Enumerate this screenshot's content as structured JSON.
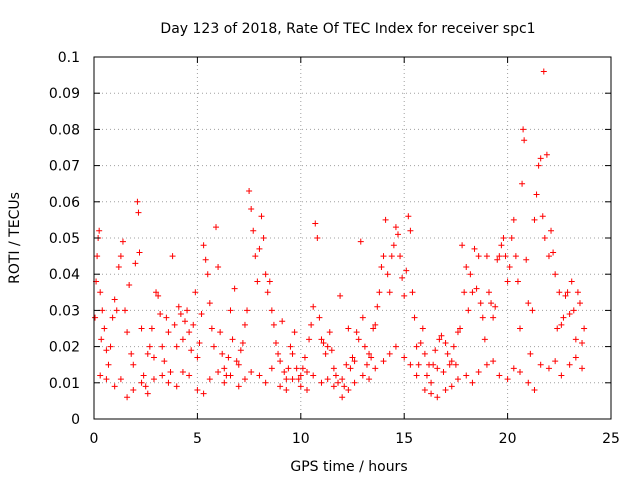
{
  "chart_data": {
    "type": "scatter",
    "title": "Day 123 of 2018, Rate Of TEC Index for receiver spc1",
    "xlabel": "GPS time / hours",
    "ylabel": "ROTI / TECUs",
    "xlim": [
      0,
      25
    ],
    "ylim": [
      0,
      0.1
    ],
    "x_ticks": [
      "0",
      "5",
      "10",
      "15",
      "20",
      "25"
    ],
    "y_ticks": [
      "0",
      "0.01",
      "0.02",
      "0.03",
      "0.04",
      "0.05",
      "0.06",
      "0.07",
      "0.08",
      "0.09",
      "0.1"
    ],
    "grid": true,
    "marker": "+",
    "color": "#ff0000",
    "series": [
      {
        "points": [
          [
            0.05,
            0.028
          ],
          [
            0.1,
            0.038
          ],
          [
            0.15,
            0.045
          ],
          [
            0.2,
            0.05
          ],
          [
            0.25,
            0.052
          ],
          [
            0.3,
            0.035
          ],
          [
            0.35,
            0.022
          ],
          [
            0.4,
            0.03
          ],
          [
            0.5,
            0.025
          ],
          [
            0.6,
            0.019
          ],
          [
            0.7,
            0.015
          ],
          [
            0.8,
            0.02
          ],
          [
            0.9,
            0.028
          ],
          [
            1.0,
            0.033
          ],
          [
            1.1,
            0.03
          ],
          [
            1.2,
            0.042
          ],
          [
            1.3,
            0.045
          ],
          [
            1.4,
            0.049
          ],
          [
            1.5,
            0.03
          ],
          [
            1.6,
            0.024
          ],
          [
            1.7,
            0.037
          ],
          [
            1.8,
            0.018
          ],
          [
            1.9,
            0.015
          ],
          [
            2.0,
            0.043
          ],
          [
            2.1,
            0.06
          ],
          [
            2.15,
            0.057
          ],
          [
            2.2,
            0.046
          ],
          [
            2.3,
            0.025
          ],
          [
            2.4,
            0.012
          ],
          [
            2.5,
            0.009
          ],
          [
            2.6,
            0.018
          ],
          [
            2.7,
            0.02
          ],
          [
            2.8,
            0.025
          ],
          [
            2.9,
            0.017
          ],
          [
            3.0,
            0.035
          ],
          [
            3.1,
            0.034
          ],
          [
            3.2,
            0.029
          ],
          [
            3.3,
            0.02
          ],
          [
            3.4,
            0.016
          ],
          [
            3.5,
            0.028
          ],
          [
            3.6,
            0.024
          ],
          [
            3.7,
            0.013
          ],
          [
            3.8,
            0.045
          ],
          [
            3.9,
            0.026
          ],
          [
            4.0,
            0.02
          ],
          [
            4.1,
            0.031
          ],
          [
            4.2,
            0.029
          ],
          [
            4.3,
            0.022
          ],
          [
            4.4,
            0.027
          ],
          [
            4.5,
            0.03
          ],
          [
            4.6,
            0.024
          ],
          [
            4.7,
            0.019
          ],
          [
            4.8,
            0.026
          ],
          [
            4.9,
            0.035
          ],
          [
            5.0,
            0.017
          ],
          [
            5.1,
            0.021
          ],
          [
            5.2,
            0.029
          ],
          [
            5.3,
            0.048
          ],
          [
            5.4,
            0.044
          ],
          [
            5.5,
            0.04
          ],
          [
            5.6,
            0.032
          ],
          [
            5.7,
            0.025
          ],
          [
            5.8,
            0.02
          ],
          [
            5.9,
            0.053
          ],
          [
            6.0,
            0.042
          ],
          [
            6.1,
            0.024
          ],
          [
            6.2,
            0.018
          ],
          [
            6.3,
            0.014
          ],
          [
            6.4,
            0.012
          ],
          [
            6.5,
            0.017
          ],
          [
            6.6,
            0.03
          ],
          [
            6.7,
            0.022
          ],
          [
            6.8,
            0.036
          ],
          [
            6.9,
            0.016
          ],
          [
            7.0,
            0.015
          ],
          [
            7.1,
            0.019
          ],
          [
            7.2,
            0.021
          ],
          [
            7.3,
            0.026
          ],
          [
            7.4,
            0.03
          ],
          [
            7.5,
            0.063
          ],
          [
            7.6,
            0.058
          ],
          [
            7.7,
            0.052
          ],
          [
            7.8,
            0.045
          ],
          [
            7.9,
            0.038
          ],
          [
            8.0,
            0.047
          ],
          [
            8.1,
            0.056
          ],
          [
            8.2,
            0.05
          ],
          [
            8.3,
            0.04
          ],
          [
            8.4,
            0.035
          ],
          [
            8.5,
            0.038
          ],
          [
            8.6,
            0.03
          ],
          [
            8.7,
            0.026
          ],
          [
            8.8,
            0.021
          ],
          [
            8.9,
            0.018
          ],
          [
            9.0,
            0.016
          ],
          [
            9.1,
            0.027
          ],
          [
            9.2,
            0.013
          ],
          [
            9.3,
            0.011
          ],
          [
            9.4,
            0.014
          ],
          [
            9.5,
            0.02
          ],
          [
            9.6,
            0.018
          ],
          [
            9.7,
            0.024
          ],
          [
            9.8,
            0.014
          ],
          [
            9.9,
            0.011
          ],
          [
            10.0,
            0.012
          ],
          [
            10.1,
            0.014
          ],
          [
            10.2,
            0.017
          ],
          [
            10.3,
            0.013
          ],
          [
            10.4,
            0.022
          ],
          [
            10.5,
            0.026
          ],
          [
            10.6,
            0.031
          ],
          [
            10.7,
            0.054
          ],
          [
            10.8,
            0.05
          ],
          [
            10.9,
            0.028
          ],
          [
            11.0,
            0.022
          ],
          [
            11.1,
            0.021
          ],
          [
            11.2,
            0.018
          ],
          [
            11.3,
            0.02
          ],
          [
            11.4,
            0.024
          ],
          [
            11.5,
            0.019
          ],
          [
            11.6,
            0.014
          ],
          [
            11.7,
            0.012
          ],
          [
            11.8,
            0.01
          ],
          [
            11.9,
            0.034
          ],
          [
            12.0,
            0.011
          ],
          [
            12.1,
            0.009
          ],
          [
            12.2,
            0.015
          ],
          [
            12.3,
            0.025
          ],
          [
            12.4,
            0.014
          ],
          [
            12.5,
            0.017
          ],
          [
            12.6,
            0.016
          ],
          [
            12.7,
            0.024
          ],
          [
            12.8,
            0.022
          ],
          [
            12.9,
            0.049
          ],
          [
            13.0,
            0.028
          ],
          [
            13.1,
            0.02
          ],
          [
            13.2,
            0.015
          ],
          [
            13.3,
            0.018
          ],
          [
            13.4,
            0.017
          ],
          [
            13.5,
            0.025
          ],
          [
            13.6,
            0.026
          ],
          [
            13.7,
            0.031
          ],
          [
            13.8,
            0.035
          ],
          [
            13.9,
            0.042
          ],
          [
            14.0,
            0.045
          ],
          [
            14.1,
            0.055
          ],
          [
            14.2,
            0.04
          ],
          [
            14.3,
            0.035
          ],
          [
            14.4,
            0.045
          ],
          [
            14.5,
            0.048
          ],
          [
            14.6,
            0.053
          ],
          [
            14.7,
            0.051
          ],
          [
            14.8,
            0.045
          ],
          [
            14.9,
            0.039
          ],
          [
            15.0,
            0.034
          ],
          [
            15.1,
            0.041
          ],
          [
            15.2,
            0.056
          ],
          [
            15.3,
            0.052
          ],
          [
            15.4,
            0.035
          ],
          [
            15.5,
            0.028
          ],
          [
            15.6,
            0.02
          ],
          [
            15.7,
            0.015
          ],
          [
            15.8,
            0.021
          ],
          [
            15.9,
            0.025
          ],
          [
            16.0,
            0.018
          ],
          [
            16.1,
            0.012
          ],
          [
            16.2,
            0.015
          ],
          [
            16.3,
            0.01
          ],
          [
            16.4,
            0.015
          ],
          [
            16.5,
            0.019
          ],
          [
            16.6,
            0.014
          ],
          [
            16.7,
            0.022
          ],
          [
            16.8,
            0.023
          ],
          [
            16.9,
            0.013
          ],
          [
            17.0,
            0.021
          ],
          [
            17.1,
            0.018
          ],
          [
            17.2,
            0.015
          ],
          [
            17.3,
            0.016
          ],
          [
            17.4,
            0.02
          ],
          [
            17.5,
            0.015
          ],
          [
            17.6,
            0.024
          ],
          [
            17.7,
            0.025
          ],
          [
            17.8,
            0.048
          ],
          [
            17.9,
            0.035
          ],
          [
            18.0,
            0.042
          ],
          [
            18.1,
            0.03
          ],
          [
            18.2,
            0.04
          ],
          [
            18.3,
            0.035
          ],
          [
            18.4,
            0.047
          ],
          [
            18.5,
            0.036
          ],
          [
            18.6,
            0.045
          ],
          [
            18.7,
            0.032
          ],
          [
            18.8,
            0.028
          ],
          [
            18.9,
            0.022
          ],
          [
            19.0,
            0.045
          ],
          [
            19.1,
            0.035
          ],
          [
            19.2,
            0.032
          ],
          [
            19.3,
            0.028
          ],
          [
            19.4,
            0.031
          ],
          [
            19.5,
            0.044
          ],
          [
            19.6,
            0.045
          ],
          [
            19.7,
            0.048
          ],
          [
            19.8,
            0.05
          ],
          [
            19.9,
            0.045
          ],
          [
            20.0,
            0.038
          ],
          [
            20.1,
            0.042
          ],
          [
            20.2,
            0.05
          ],
          [
            20.3,
            0.055
          ],
          [
            20.4,
            0.045
          ],
          [
            20.5,
            0.038
          ],
          [
            20.6,
            0.025
          ],
          [
            20.7,
            0.065
          ],
          [
            20.75,
            0.08
          ],
          [
            20.8,
            0.077
          ],
          [
            20.9,
            0.044
          ],
          [
            21.0,
            0.032
          ],
          [
            21.1,
            0.018
          ],
          [
            21.2,
            0.03
          ],
          [
            21.3,
            0.055
          ],
          [
            21.4,
            0.062
          ],
          [
            21.5,
            0.07
          ],
          [
            21.6,
            0.072
          ],
          [
            21.7,
            0.056
          ],
          [
            21.75,
            0.096
          ],
          [
            21.8,
            0.05
          ],
          [
            21.9,
            0.073
          ],
          [
            22.0,
            0.045
          ],
          [
            22.1,
            0.052
          ],
          [
            22.2,
            0.046
          ],
          [
            22.3,
            0.04
          ],
          [
            22.4,
            0.025
          ],
          [
            22.5,
            0.035
          ],
          [
            22.6,
            0.026
          ],
          [
            22.7,
            0.028
          ],
          [
            22.8,
            0.034
          ],
          [
            22.9,
            0.035
          ],
          [
            23.0,
            0.029
          ],
          [
            23.1,
            0.038
          ],
          [
            23.2,
            0.03
          ],
          [
            23.3,
            0.022
          ],
          [
            23.4,
            0.035
          ],
          [
            23.5,
            0.032
          ],
          [
            23.6,
            0.021
          ],
          [
            23.7,
            0.025
          ],
          [
            0.3,
            0.012
          ],
          [
            0.6,
            0.011
          ],
          [
            1.0,
            0.009
          ],
          [
            1.3,
            0.011
          ],
          [
            1.6,
            0.006
          ],
          [
            1.9,
            0.008
          ],
          [
            2.3,
            0.01
          ],
          [
            2.6,
            0.007
          ],
          [
            2.9,
            0.011
          ],
          [
            3.3,
            0.012
          ],
          [
            3.6,
            0.01
          ],
          [
            4.0,
            0.009
          ],
          [
            4.3,
            0.013
          ],
          [
            4.6,
            0.012
          ],
          [
            5.0,
            0.008
          ],
          [
            5.3,
            0.007
          ],
          [
            5.6,
            0.011
          ],
          [
            6.0,
            0.013
          ],
          [
            6.3,
            0.01
          ],
          [
            6.6,
            0.012
          ],
          [
            7.0,
            0.009
          ],
          [
            7.3,
            0.011
          ],
          [
            7.6,
            0.013
          ],
          [
            8.0,
            0.012
          ],
          [
            8.3,
            0.01
          ],
          [
            8.6,
            0.014
          ],
          [
            9.0,
            0.009
          ],
          [
            9.3,
            0.008
          ],
          [
            9.6,
            0.011
          ],
          [
            10.0,
            0.009
          ],
          [
            10.3,
            0.008
          ],
          [
            10.6,
            0.012
          ],
          [
            11.0,
            0.01
          ],
          [
            11.3,
            0.011
          ],
          [
            11.6,
            0.009
          ],
          [
            12.0,
            0.006
          ],
          [
            12.3,
            0.008
          ],
          [
            12.6,
            0.01
          ],
          [
            13.0,
            0.012
          ],
          [
            13.3,
            0.011
          ],
          [
            13.6,
            0.014
          ],
          [
            14.0,
            0.016
          ],
          [
            14.3,
            0.018
          ],
          [
            14.6,
            0.02
          ],
          [
            15.0,
            0.017
          ],
          [
            15.3,
            0.015
          ],
          [
            15.6,
            0.012
          ],
          [
            16.0,
            0.008
          ],
          [
            16.3,
            0.007
          ],
          [
            16.6,
            0.006
          ],
          [
            17.0,
            0.008
          ],
          [
            17.3,
            0.009
          ],
          [
            17.6,
            0.011
          ],
          [
            18.0,
            0.012
          ],
          [
            18.3,
            0.01
          ],
          [
            18.6,
            0.013
          ],
          [
            19.0,
            0.015
          ],
          [
            19.3,
            0.016
          ],
          [
            19.6,
            0.012
          ],
          [
            20.0,
            0.011
          ],
          [
            20.3,
            0.014
          ],
          [
            20.6,
            0.013
          ],
          [
            21.0,
            0.01
          ],
          [
            21.3,
            0.008
          ],
          [
            21.6,
            0.015
          ],
          [
            22.0,
            0.014
          ],
          [
            22.3,
            0.016
          ],
          [
            22.6,
            0.012
          ],
          [
            23.0,
            0.015
          ],
          [
            23.3,
            0.017
          ],
          [
            23.6,
            0.014
          ]
        ]
      }
    ]
  }
}
